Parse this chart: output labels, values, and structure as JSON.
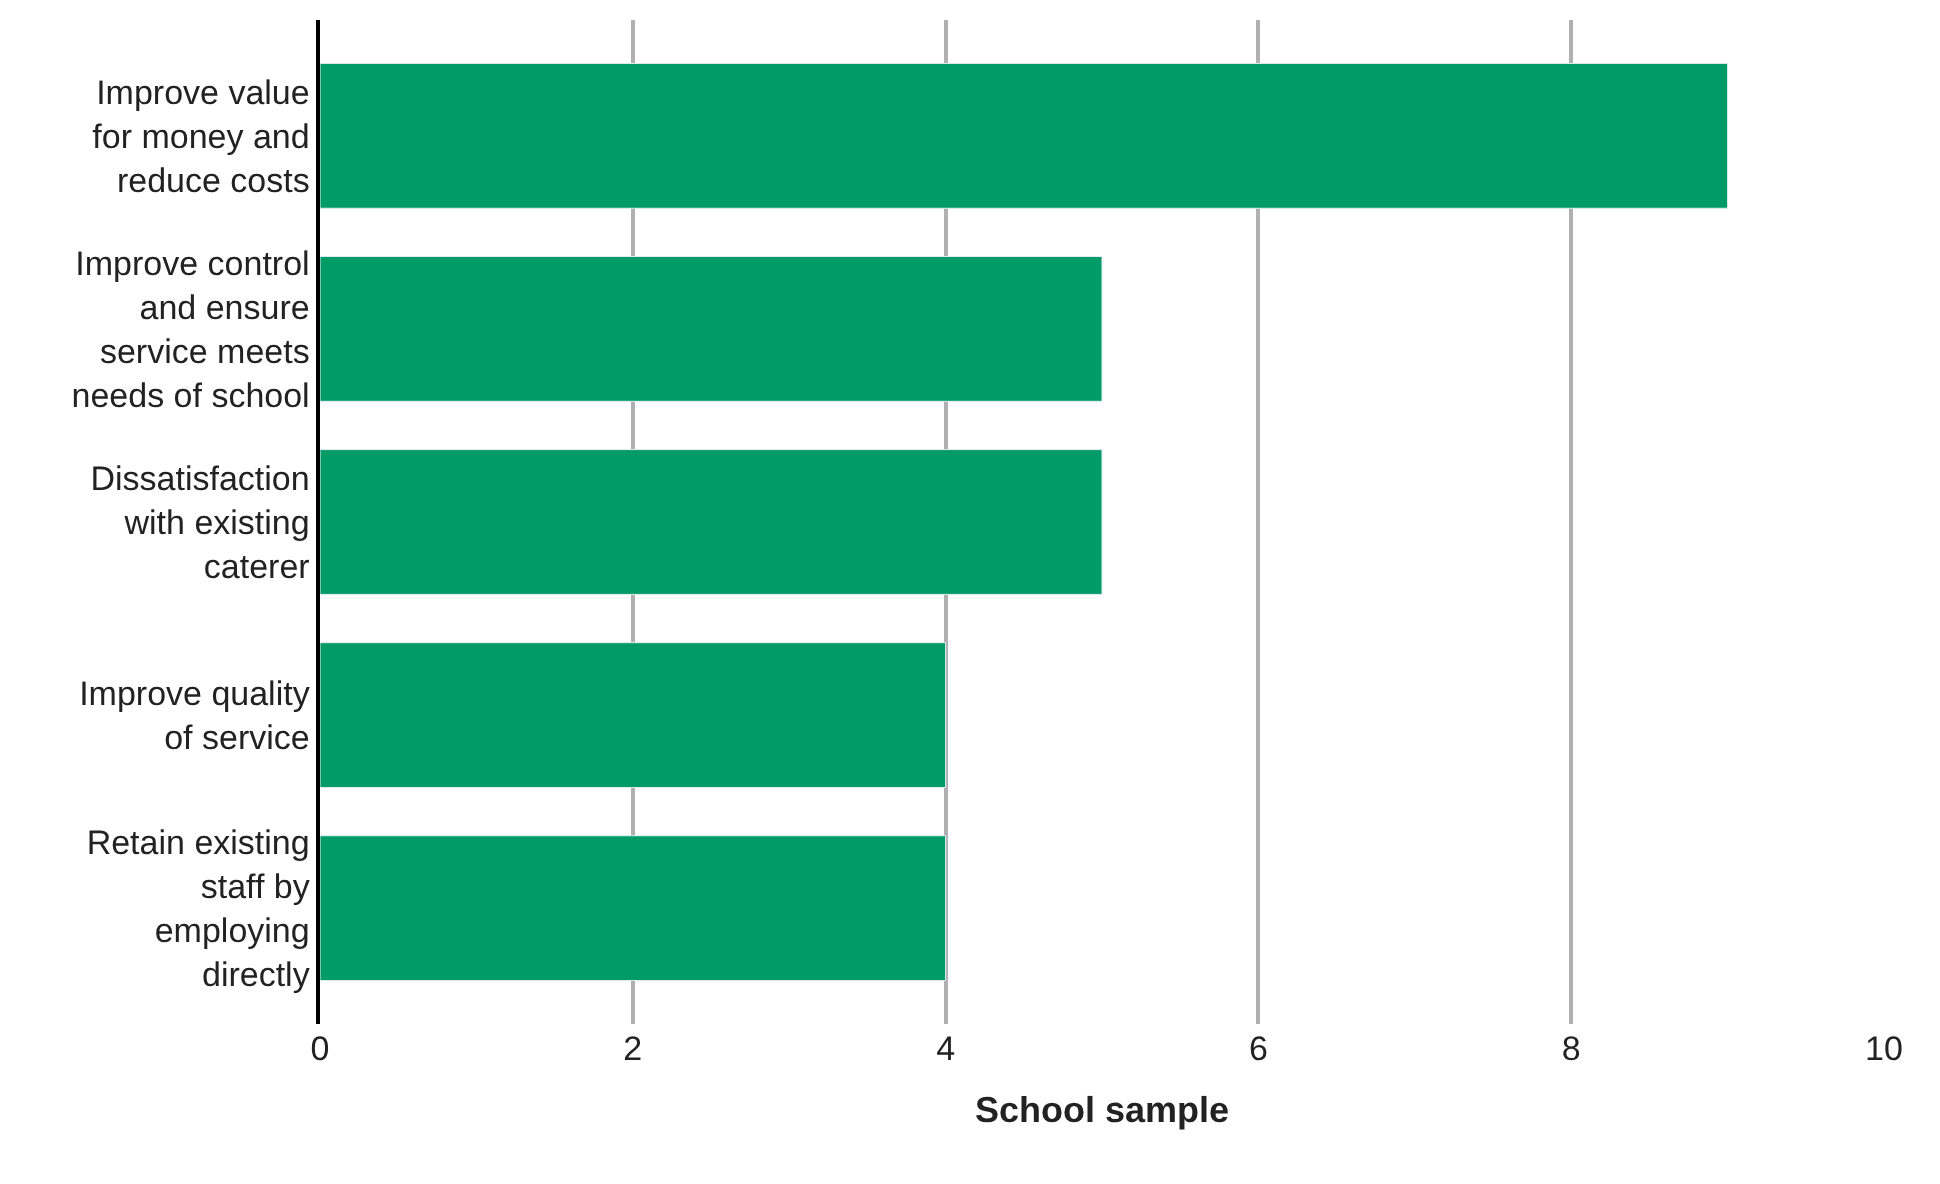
{
  "chart_data": {
    "type": "bar",
    "orientation": "horizontal",
    "xlabel": "School sample",
    "categories": [
      "Improve value for money and reduce costs",
      "Improve control and ensure service meets needs of school",
      "Dissatisfaction with existing caterer",
      "Improve quality of service",
      "Retain existing staff by employing directly"
    ],
    "values": [
      9,
      5,
      5,
      4,
      4
    ],
    "color": "#009b67",
    "xlim": [
      0,
      10
    ],
    "xticks": [
      0,
      2,
      4,
      6,
      8,
      10
    ],
    "grid": "x"
  }
}
